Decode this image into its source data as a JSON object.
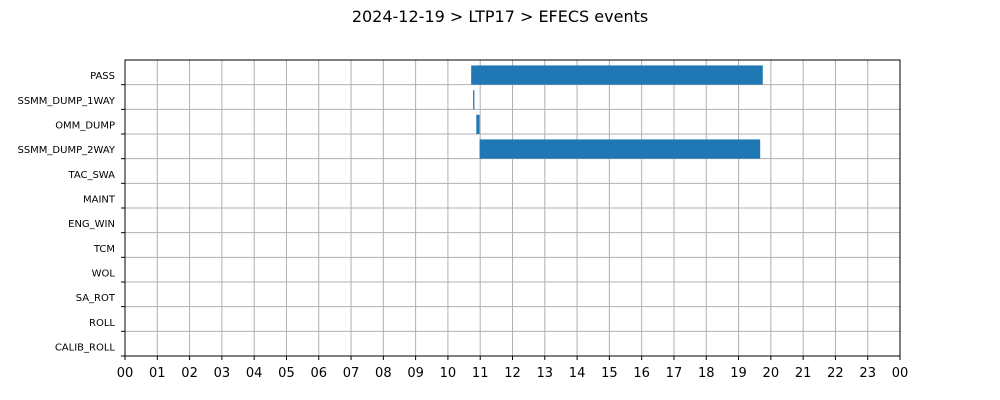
{
  "chart_data": {
    "type": "bar",
    "orientation": "horizontal",
    "title": "2024-12-19 > LTP17 > EFECS events",
    "xlabel": "",
    "ylabel": "",
    "xlim": [
      0,
      24
    ],
    "x_tick_labels": [
      "00",
      "01",
      "02",
      "03",
      "04",
      "05",
      "06",
      "07",
      "08",
      "09",
      "10",
      "11",
      "12",
      "13",
      "14",
      "15",
      "16",
      "17",
      "18",
      "19",
      "20",
      "21",
      "22",
      "23",
      "00"
    ],
    "grid": true,
    "bar_color": "#1f77b4",
    "categories": [
      "PASS",
      "SSMM_DUMP_1WAY",
      "OMM_DUMP",
      "SSMM_DUMP_2WAY",
      "TAC_SWA",
      "MAINT",
      "ENG_WIN",
      "TCM",
      "WOL",
      "SA_ROT",
      "ROLL",
      "CALIB_ROLL"
    ],
    "intervals": [
      {
        "category": "PASS",
        "start": 10.72,
        "end": 19.75
      },
      {
        "category": "SSMM_DUMP_1WAY",
        "start": 10.78,
        "end": 10.82
      },
      {
        "category": "OMM_DUMP",
        "start": 10.88,
        "end": 10.98
      },
      {
        "category": "SSMM_DUMP_2WAY",
        "start": 10.98,
        "end": 19.67
      }
    ]
  }
}
